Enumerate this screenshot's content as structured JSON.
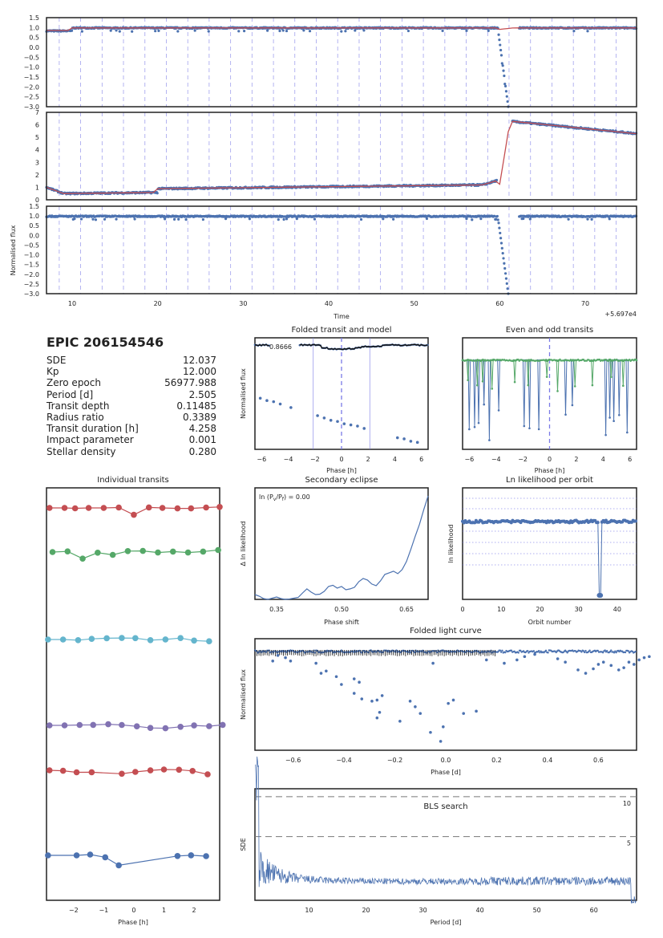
{
  "chart_data": [
    {
      "id": "raw",
      "type": "scatter",
      "panels": [
        {
          "name": "raw-flux",
          "ylim": [
            -3.0,
            1.5
          ],
          "yticks": [
            "1.5",
            "1.0",
            "0.5",
            "0.0",
            "−0.5",
            "−1.0",
            "−1.5",
            "−2.0",
            "−2.5",
            "−3.0"
          ]
        },
        {
          "name": "trend",
          "ylim": [
            0,
            7
          ],
          "yticks": [
            "7",
            "6",
            "5",
            "4",
            "3",
            "2",
            "1",
            "0"
          ]
        },
        {
          "name": "detrended",
          "ylim": [
            -3.0,
            1.5
          ],
          "yticks": [
            "1.5",
            "1.0",
            "0.5",
            "0.0",
            "−0.5",
            "−1.0",
            "−1.5",
            "−2.0",
            "−2.5",
            "−3.0"
          ]
        }
      ],
      "xlim": [
        7,
        76
      ],
      "xticks": [
        "10",
        "20",
        "30",
        "40",
        "50",
        "60",
        "70"
      ],
      "xlabel": "Time",
      "offset_label": "+5.697e4",
      "ylabel": "Normalised flux",
      "transit_times": [
        8.49,
        10.99,
        13.5,
        16.0,
        18.51,
        21.01,
        23.52,
        26.02,
        28.53,
        31.03,
        33.54,
        36.04,
        38.55,
        41.05,
        43.56,
        46.06,
        48.57,
        51.07,
        53.58,
        56.08,
        58.59,
        61.09,
        63.6,
        66.1,
        68.61,
        71.11,
        73.62
      ],
      "flux_level": 0.98,
      "drop_start": 59.8,
      "drop_end": 61.0,
      "drop_min": -3.0,
      "trend_jump": [
        61.0,
        6.3,
        5.3
      ]
    },
    {
      "id": "folded-transit",
      "type": "scatter",
      "title": "Folded transit and model",
      "xlabel": "Phase [h]",
      "ylabel": "Normalised flux",
      "xlim": [
        -6.5,
        6.5
      ],
      "xticks": [
        "−6",
        "−4",
        "−2",
        "0",
        "2",
        "4",
        "6"
      ],
      "annotation": "0.8666",
      "points": [
        [
          -6.1,
          0.952
        ],
        [
          -5.6,
          0.95
        ],
        [
          -5.1,
          0.949
        ],
        [
          -4.6,
          0.947
        ],
        [
          -3.8,
          0.944
        ],
        [
          -1.8,
          0.937
        ],
        [
          -1.3,
          0.935
        ],
        [
          -0.8,
          0.933
        ],
        [
          -0.3,
          0.932
        ],
        [
          0.2,
          0.93
        ],
        [
          0.7,
          0.929
        ],
        [
          1.2,
          0.928
        ],
        [
          1.7,
          0.926
        ],
        [
          4.2,
          0.918
        ],
        [
          4.7,
          0.917
        ],
        [
          5.2,
          0.915
        ],
        [
          5.7,
          0.914
        ]
      ],
      "ylim": [
        0.908,
        1.004
      ]
    },
    {
      "id": "even-odd",
      "type": "line",
      "title": "Even and odd transits",
      "xlabel": "Phase [h]",
      "xlim": [
        -6.5,
        6.5
      ],
      "xticks": [
        "−6",
        "−4",
        "−2",
        "0",
        "2",
        "4",
        "6"
      ]
    },
    {
      "id": "individual",
      "type": "line",
      "title": "Individual transits",
      "xlabel": "Phase [h]",
      "xlim": [
        -2.9,
        2.85
      ],
      "xticks": [
        "−2",
        "−1",
        "0",
        "1",
        "2"
      ],
      "colors": [
        "#c44e52",
        "#55a868",
        "#64b5cd",
        "#8172b2",
        "#c44e52",
        "#4c72b0"
      ],
      "series": [
        {
          "x": [
            -2.8,
            -2.3,
            -1.95,
            -1.5,
            -1.0,
            -0.5,
            0.0,
            0.5,
            0.95,
            1.45,
            1.9,
            2.4,
            2.85
          ],
          "dy": [
            0,
            0,
            0.5,
            0,
            0,
            -0.5,
            8.6,
            -0.6,
            0,
            0.6,
            0.6,
            -0.5,
            -1.2
          ]
        },
        {
          "x": [
            -2.7,
            -2.2,
            -1.7,
            -1.2,
            -0.7,
            -0.2,
            0.3,
            0.8,
            1.3,
            1.8,
            2.3,
            2.8
          ],
          "dy": [
            0,
            -0.8,
            8.2,
            0.8,
            3.5,
            -1.2,
            -1.4,
            0.6,
            -0.6,
            0.6,
            -0.6,
            -2.5
          ]
        },
        {
          "x": [
            -2.85,
            -2.35,
            -1.85,
            -1.4,
            -0.9,
            -0.4,
            0.05,
            0.55,
            1.05,
            1.55,
            2.0,
            2.5
          ],
          "dy": [
            0,
            0,
            0.8,
            -0.8,
            -1.6,
            -1.9,
            -1.7,
            0.8,
            -0.1,
            -1.8,
            1.3,
            2.2
          ]
        },
        {
          "x": [
            -2.8,
            -2.3,
            -1.8,
            -1.35,
            -0.85,
            -0.4,
            0.1,
            0.55,
            1.05,
            1.55,
            2.0,
            2.5,
            2.95
          ],
          "dy": [
            0,
            0,
            -0.5,
            -0.6,
            -1.4,
            -0.5,
            1.2,
            3.2,
            3.6,
            1.8,
            0.1,
            1.0,
            -0.6
          ]
        },
        {
          "x": [
            -2.8,
            -2.35,
            -1.9,
            -1.4,
            -0.4,
            0.05,
            0.55,
            1.0,
            1.5,
            1.95,
            2.45
          ],
          "dy": [
            0,
            0.6,
            2.5,
            2.4,
            4.3,
            2.0,
            0.1,
            -1.0,
            -0.7,
            0.8,
            5.0
          ]
        },
        {
          "x": [
            -2.85,
            -1.9,
            -1.45,
            -0.95,
            -0.5,
            1.45,
            1.9,
            2.4
          ],
          "dy": [
            0,
            0,
            -1.0,
            2.4,
            12.4,
            0.8,
            -0.1,
            1.0
          ]
        }
      ]
    },
    {
      "id": "secondary",
      "type": "line",
      "title": "Secondary eclipse",
      "xlabel": "Phase shift",
      "ylabel": "Δ ln likelihood",
      "xlim": [
        0.3,
        0.7
      ],
      "xticks": [
        "0.35",
        "0.50",
        "0.65"
      ],
      "annotation": "ln (P<sub>v</sub>/P<sub>f</sub>) = 0.00",
      "x": [
        0.3,
        0.31,
        0.32,
        0.33,
        0.34,
        0.35,
        0.36,
        0.37,
        0.38,
        0.39,
        0.4,
        0.41,
        0.42,
        0.43,
        0.44,
        0.45,
        0.46,
        0.47,
        0.48,
        0.49,
        0.5,
        0.51,
        0.52,
        0.53,
        0.54,
        0.55,
        0.56,
        0.57,
        0.58,
        0.59,
        0.6,
        0.61,
        0.62,
        0.63,
        0.64,
        0.65,
        0.66,
        0.67,
        0.68,
        0.69,
        0.7
      ],
      "y": [
        1.2,
        0.8,
        0.2,
        0.0,
        0.3,
        0.6,
        0.2,
        0.0,
        0.1,
        0.3,
        0.5,
        1.6,
        2.6,
        1.8,
        1.2,
        1.3,
        2.0,
        3.2,
        3.5,
        2.8,
        3.2,
        2.4,
        2.6,
        3.0,
        4.4,
        5.2,
        4.8,
        3.8,
        3.4,
        4.6,
        6.2,
        6.6,
        7.0,
        6.4,
        7.4,
        9.4,
        12.4,
        15.6,
        18.6,
        22.3,
        25.7
      ],
      "ylim": [
        0,
        25.7
      ]
    },
    {
      "id": "orbit",
      "type": "scatter",
      "title": "Ln likelihood per orbit",
      "xlabel": "Orbit number",
      "ylabel": "ln likelihood",
      "xlim": [
        0,
        45
      ],
      "xticks": [
        "0",
        "10",
        "20",
        "30",
        "40"
      ],
      "dip_orbit": 35.5,
      "ylim": [
        -100,
        10
      ]
    },
    {
      "id": "folded-lc",
      "type": "scatter",
      "title": "Folded light curve",
      "xlabel": "Phase [d]",
      "ylabel": "Normalised flux",
      "xlim": [
        -0.75,
        0.75
      ],
      "xticks": [
        "−0.6",
        "−0.4",
        "−0.2",
        "0.0",
        "0.2",
        "0.4",
        "0.6"
      ],
      "ylim": [
        0,
        1
      ],
      "points": [
        [
          -0.68,
          0.8
        ],
        [
          -0.66,
          0.85
        ],
        [
          -0.63,
          0.83
        ],
        [
          -0.61,
          0.8
        ],
        [
          -0.51,
          0.78
        ],
        [
          -0.49,
          0.69
        ],
        [
          -0.47,
          0.71
        ],
        [
          -0.43,
          0.66
        ],
        [
          -0.41,
          0.59
        ],
        [
          -0.36,
          0.64
        ],
        [
          -0.34,
          0.61
        ],
        [
          -0.36,
          0.51
        ],
        [
          -0.33,
          0.46
        ],
        [
          -0.29,
          0.44
        ],
        [
          -0.27,
          0.45
        ],
        [
          -0.27,
          0.29
        ],
        [
          -0.25,
          0.49
        ],
        [
          -0.26,
          0.34
        ],
        [
          -0.18,
          0.26
        ],
        [
          -0.14,
          0.44
        ],
        [
          -0.12,
          0.39
        ],
        [
          -0.1,
          0.33
        ],
        [
          -0.06,
          0.16
        ],
        [
          -0.05,
          0.78
        ],
        [
          -0.02,
          0.08
        ],
        [
          -0.01,
          0.21
        ],
        [
          0.01,
          0.42
        ],
        [
          0.03,
          0.45
        ],
        [
          0.07,
          0.33
        ],
        [
          0.12,
          0.35
        ],
        [
          0.16,
          0.81
        ],
        [
          0.23,
          0.78
        ],
        [
          0.28,
          0.81
        ],
        [
          0.31,
          0.84
        ],
        [
          0.35,
          0.86
        ],
        [
          0.44,
          0.82
        ],
        [
          0.47,
          0.79
        ],
        [
          0.52,
          0.72
        ],
        [
          0.55,
          0.69
        ],
        [
          0.58,
          0.73
        ],
        [
          0.6,
          0.77
        ],
        [
          0.62,
          0.79
        ],
        [
          0.65,
          0.76
        ],
        [
          0.68,
          0.72
        ],
        [
          0.7,
          0.74
        ],
        [
          0.72,
          0.79
        ],
        [
          0.74,
          0.77
        ],
        [
          0.76,
          0.81
        ],
        [
          0.78,
          0.83
        ],
        [
          0.8,
          0.84
        ]
      ]
    },
    {
      "id": "bls",
      "type": "line",
      "title": "BLS search",
      "xlabel": "Period [d]",
      "ylabel": "SDE",
      "xlim": [
        0.5,
        67.5
      ],
      "xticks": [
        "10",
        "20",
        "30",
        "40",
        "50",
        "60"
      ],
      "sde_lines": [
        {
          "label": "10",
          "value": 10
        },
        {
          "label": "5",
          "value": 5
        }
      ],
      "ylim": [
        -3,
        11
      ]
    }
  ],
  "stats": {
    "target": "EPIC 206154546",
    "rows": [
      {
        "label": "SDE",
        "value": "12.037"
      },
      {
        "label": "Kp",
        "value": "12.000"
      },
      {
        "label": "Zero epoch",
        "value": "56977.988"
      },
      {
        "label": "Period [d]",
        "value": "2.505"
      },
      {
        "label": "Transit depth",
        "value": "0.11485"
      },
      {
        "label": "Radius ratio",
        "value": "0.3389"
      },
      {
        "label": "Transit duration [h]",
        "value": "4.258"
      },
      {
        "label": "Impact parameter",
        "value": "0.001"
      },
      {
        "label": "Stellar density",
        "value": "0.280"
      }
    ]
  },
  "colors": {
    "blue": "#4c72b0",
    "red": "#c44e52",
    "green": "#55a868",
    "cyan": "#64b5cd",
    "purple": "#8172b2",
    "grid": "#7a7ae6"
  }
}
